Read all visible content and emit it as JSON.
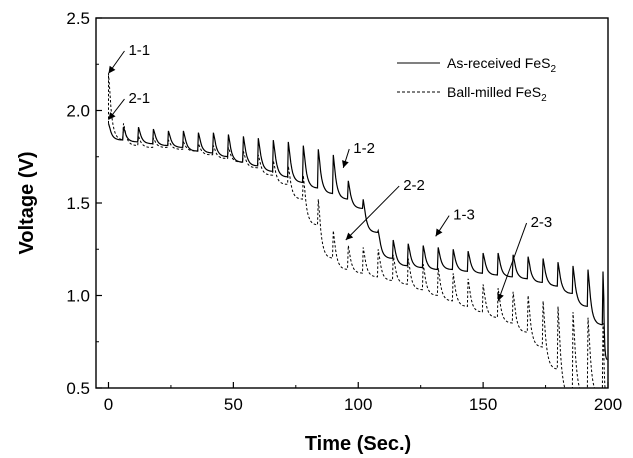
{
  "chart_data": {
    "type": "line",
    "xlabel": "Time (Sec.)",
    "ylabel": "Voltage (V)",
    "xlim": [
      -5,
      200
    ],
    "ylim": [
      0.5,
      2.5
    ],
    "x_ticks": [
      "0",
      "50",
      "100",
      "150",
      "200"
    ],
    "y_ticks": [
      "0.5",
      "1.0",
      "1.5",
      "2.0",
      "2.5"
    ],
    "legend_position": "top-right",
    "series": [
      {
        "name": "As-received FeS",
        "name_sub": "2",
        "style": "solid",
        "color": "#000000",
        "start": [
          0,
          1.93
        ],
        "pulse_times": [
          0,
          6,
          12,
          18,
          24,
          30,
          36,
          42,
          48,
          54,
          60,
          66,
          72,
          78,
          84,
          90,
          96,
          102,
          108,
          114,
          120,
          126,
          132,
          138,
          144,
          150,
          156,
          162,
          168,
          174,
          180,
          186,
          192,
          198
        ],
        "peak_voltages": [
          1.93,
          1.91,
          1.91,
          1.9,
          1.89,
          1.89,
          1.88,
          1.88,
          1.87,
          1.86,
          1.85,
          1.84,
          1.83,
          1.81,
          1.79,
          1.76,
          1.62,
          1.52,
          1.35,
          1.3,
          1.28,
          1.27,
          1.26,
          1.25,
          1.24,
          1.23,
          1.23,
          1.22,
          1.21,
          1.2,
          1.18,
          1.16,
          1.14,
          1.13
        ],
        "base_voltages": [
          1.84,
          1.83,
          1.82,
          1.81,
          1.8,
          1.78,
          1.77,
          1.75,
          1.72,
          1.7,
          1.67,
          1.64,
          1.61,
          1.58,
          1.55,
          1.52,
          1.47,
          1.34,
          1.2,
          1.16,
          1.15,
          1.14,
          1.14,
          1.13,
          1.12,
          1.11,
          1.1,
          1.09,
          1.07,
          1.05,
          1.01,
          0.94,
          0.84,
          0.65
        ]
      },
      {
        "name": "Ball-milled FeS",
        "name_sub": "2",
        "style": "dashed",
        "color": "#000000",
        "start": [
          0,
          1.93
        ],
        "pulse_times": [
          0,
          6,
          12,
          18,
          24,
          30,
          36,
          42,
          48,
          54,
          60,
          66,
          72,
          78,
          84,
          90,
          96,
          102,
          108,
          114,
          120,
          126,
          132,
          138,
          144,
          150,
          156,
          162,
          168,
          174,
          180,
          186,
          192,
          198
        ],
        "peak_voltages": [
          2.2,
          1.93,
          1.86,
          1.85,
          1.84,
          1.83,
          1.82,
          1.81,
          1.8,
          1.78,
          1.76,
          1.73,
          1.7,
          1.65,
          1.52,
          1.35,
          1.27,
          1.26,
          1.25,
          1.22,
          1.2,
          1.17,
          1.15,
          1.12,
          1.09,
          1.06,
          1.04,
          1.02,
          1.0,
          0.97,
          0.94,
          0.91,
          0.88,
          0.85
        ],
        "base_voltages": [
          1.84,
          1.81,
          1.8,
          1.8,
          1.79,
          1.78,
          1.76,
          1.74,
          1.72,
          1.69,
          1.65,
          1.6,
          1.52,
          1.38,
          1.2,
          1.14,
          1.12,
          1.1,
          1.08,
          1.06,
          1.03,
          1.0,
          0.97,
          0.94,
          0.91,
          0.88,
          0.85,
          0.8,
          0.72,
          0.6,
          0.45,
          0.45,
          0.45,
          0.45
        ]
      }
    ],
    "annotations": [
      {
        "label": "1-1",
        "tip": [
          0,
          2.2
        ],
        "text_at": [
          8,
          2.3
        ]
      },
      {
        "label": "2-1",
        "tip": [
          0,
          1.95
        ],
        "text_at": [
          8,
          2.04
        ]
      },
      {
        "label": "1-2",
        "tip": [
          94,
          1.69
        ],
        "text_at": [
          98,
          1.77
        ]
      },
      {
        "label": "2-2",
        "tip": [
          95,
          1.3
        ],
        "text_at": [
          118,
          1.57
        ]
      },
      {
        "label": "1-3",
        "tip": [
          131,
          1.32
        ],
        "text_at": [
          138,
          1.41
        ]
      },
      {
        "label": "2-3",
        "tip": [
          156,
          0.97
        ],
        "text_at": [
          169,
          1.37
        ]
      }
    ]
  }
}
